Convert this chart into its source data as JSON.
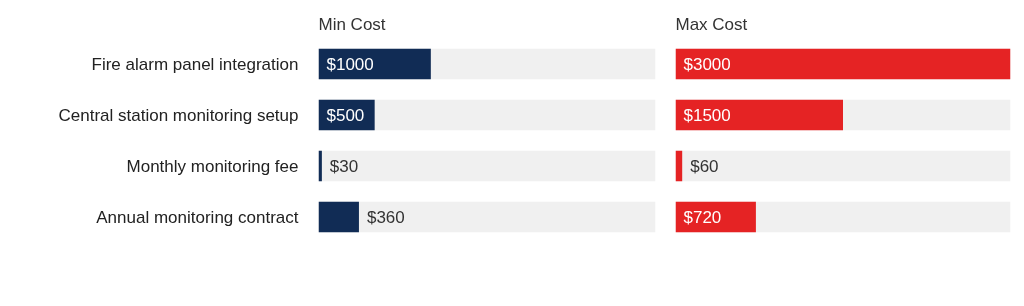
{
  "chart_data": [
    {
      "type": "bar",
      "orientation": "horizontal",
      "title": "Min Cost",
      "categories": [
        "Fire alarm panel integration",
        "Central station monitoring setup",
        "Monthly monitoring fee",
        "Annual monitoring contract"
      ],
      "values": [
        1000,
        500,
        30,
        360
      ],
      "value_labels": [
        "$1000",
        "$500",
        "$30",
        "$360"
      ],
      "color": "#112c55",
      "xlim": [
        0,
        3000
      ],
      "tick_labels": "y",
      "grid": false
    },
    {
      "type": "bar",
      "orientation": "horizontal",
      "title": "Max Cost",
      "categories": [
        null,
        null,
        null,
        null
      ],
      "values": [
        3000,
        1500,
        60,
        720
      ],
      "value_labels": [
        "$3000",
        "$1500",
        "$60",
        "$720"
      ],
      "color": "#e52324",
      "xlim": [
        0,
        3000
      ],
      "tick_labels": false,
      "grid": false
    }
  ]
}
